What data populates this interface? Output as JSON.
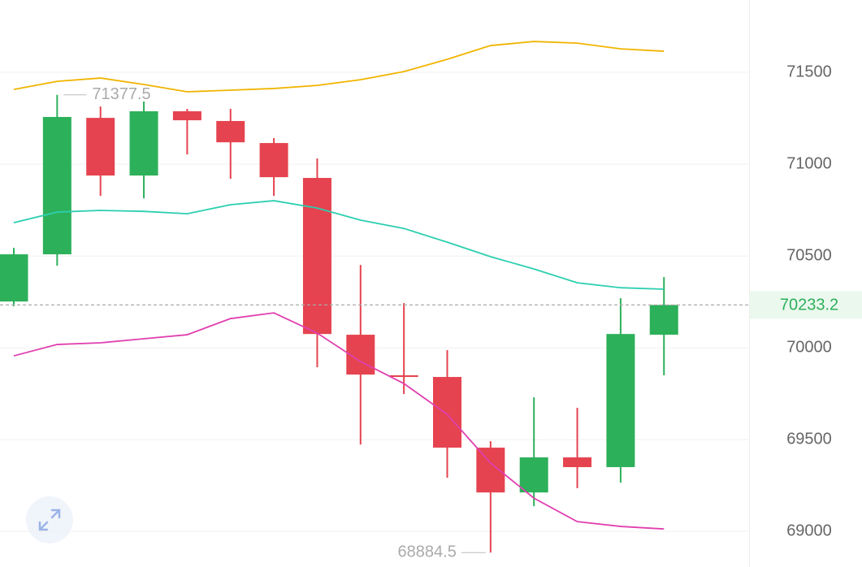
{
  "chart_data": {
    "type": "candlestick",
    "categories": [
      null,
      null,
      null,
      null,
      null,
      null,
      null,
      null,
      null,
      null,
      null,
      null,
      null,
      null,
      null,
      null
    ],
    "open": [
      70252,
      70509,
      71252,
      70938,
      71288,
      71235,
      71115,
      70925,
      70071,
      69850,
      69841,
      69456,
      69212,
      69403,
      69350,
      70071
    ],
    "high": [
      70544,
      71377.5,
      71314,
      71341,
      71301,
      71301,
      71142,
      71031,
      70451,
      70243,
      69987,
      69491,
      69730,
      69673,
      70270,
      70385
    ],
    "low": [
      70226,
      70447,
      70827,
      70814,
      71053,
      70920,
      70827,
      69894,
      69473,
      69748,
      69292,
      68884.5,
      69137,
      69235,
      69265,
      69850
    ],
    "close": [
      70509,
      71257,
      70938,
      71288,
      71239,
      71119,
      70929,
      70075,
      69854,
      69841,
      69456,
      69212,
      69403,
      69350,
      70075,
      70233.2
    ],
    "up_color": "#2db05a",
    "down_color": "#e5434f",
    "lines": [
      {
        "color": "#f0b400",
        "values": [
          71407,
          71451,
          71469,
          71434,
          71394,
          71403,
          71412,
          71429,
          71460,
          71504,
          71571,
          71646,
          71668,
          71659,
          71628,
          71615
        ]
      },
      {
        "color": "#2ccfb0",
        "values": [
          70681,
          70739,
          70748,
          70743,
          70730,
          70779,
          70801,
          70761,
          70695,
          70650,
          70575,
          70496,
          70429,
          70354,
          70327,
          70319
        ]
      },
      {
        "color": "#e040b0",
        "values": [
          69956,
          70018,
          70027,
          70049,
          70071,
          70159,
          70190,
          70080,
          69925,
          69805,
          69637,
          69372,
          69181,
          69053,
          69027,
          69013
        ]
      }
    ],
    "max_label": 71377.5,
    "min_label": 68884.5,
    "current_price": 70233.2,
    "ylim": [
      68806,
      71894
    ],
    "yticks": [
      69000,
      69500,
      70000,
      70500,
      71000,
      71500
    ],
    "grid": true
  }
}
